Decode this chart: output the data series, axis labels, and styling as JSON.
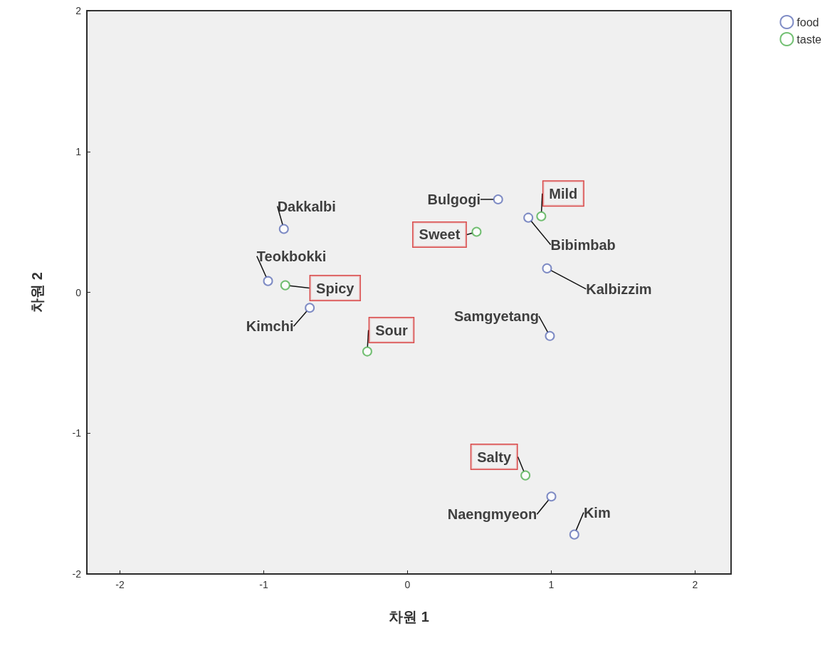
{
  "chart_data": {
    "type": "scatter",
    "xlabel": "차원 1",
    "ylabel": "차원 2",
    "xlim": [
      -2.23,
      2.25
    ],
    "ylim": [
      -2,
      2
    ],
    "xticks": [
      -2,
      -1,
      0,
      1,
      2
    ],
    "yticks": [
      -2,
      -1,
      0,
      1,
      2
    ],
    "grid": false,
    "legend": "top right",
    "marker": "circle",
    "series": [
      {
        "name": "food",
        "color": "#6070b8",
        "x": [
          -0.86,
          -0.97,
          -0.68,
          0.63,
          0.84,
          0.97,
          0.99,
          1.0,
          1.16
        ],
        "values": [
          0.45,
          0.08,
          -0.11,
          0.66,
          0.53,
          0.17,
          -0.31,
          -1.45,
          -1.72
        ]
      },
      {
        "name": "taste",
        "color": "#50b050",
        "x": [
          0.93,
          0.48,
          -0.85,
          -0.28,
          0.82
        ],
        "values": [
          0.54,
          0.43,
          0.05,
          -0.42,
          -1.3
        ]
      }
    ],
    "annotations": [
      {
        "text": "Dakkalbi",
        "x": -0.86,
        "y": 0.45
      },
      {
        "text": "Teokbokki",
        "x": -0.97,
        "y": 0.08
      },
      {
        "text": "Kimchi",
        "x": -0.68,
        "y": -0.11
      },
      {
        "text": "Bulgogi",
        "x": 0.63,
        "y": 0.66
      },
      {
        "text": "Bibimbab",
        "x": 0.84,
        "y": 0.53
      },
      {
        "text": "Kalbizzim",
        "x": 0.97,
        "y": 0.17
      },
      {
        "text": "Samgyetang",
        "x": 0.99,
        "y": -0.31
      },
      {
        "text": "Naengmyeon",
        "x": 1.0,
        "y": -1.45
      },
      {
        "text": "Kim",
        "x": 1.16,
        "y": -1.72
      },
      {
        "text": "Mild",
        "x": 0.93,
        "y": 0.54
      },
      {
        "text": "Sweet",
        "x": 0.48,
        "y": 0.43
      },
      {
        "text": "Spicy",
        "x": -0.85,
        "y": 0.05
      },
      {
        "text": "Sour",
        "x": -0.28,
        "y": -0.42
      },
      {
        "text": "Salty",
        "x": 0.82,
        "y": -1.3
      }
    ]
  }
}
